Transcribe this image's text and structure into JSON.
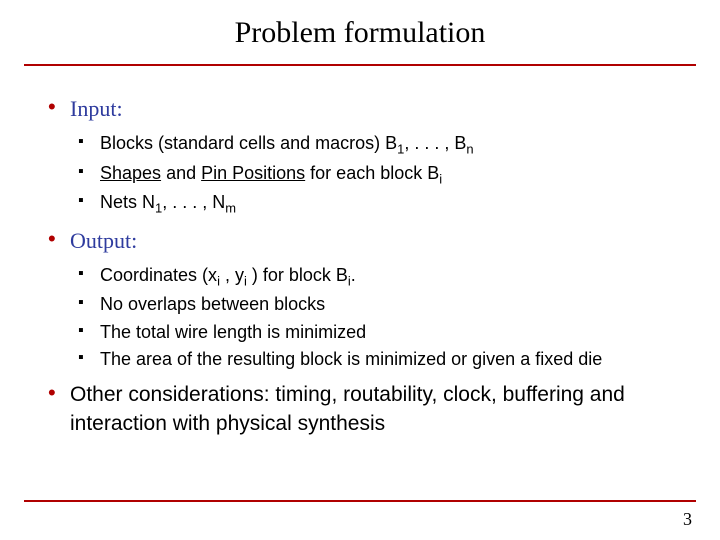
{
  "colors": {
    "accent": "#b00000",
    "heading_blue": "#2e3b9e",
    "text": "#000000",
    "bg": "#ffffff"
  },
  "fonts": {
    "title": "Times New Roman",
    "heading": "Comic Sans MS",
    "body": "Verdana"
  },
  "title": "Problem formulation",
  "page_number": "3",
  "sections": {
    "input": {
      "label": "Input:",
      "items": {
        "blocks_pre": "Blocks (standard cells and macros) B",
        "blocks_sub1": "1",
        "blocks_mid": ", . . . , B",
        "blocks_sub2": "n",
        "shapes_w": "Shapes",
        "shapes_mid": " and ",
        "pin_w": "Pin Positions",
        "shapes_post": " for each block B",
        "shapes_sub": "i",
        "nets_pre": "Nets N",
        "nets_sub1": "1",
        "nets_mid": ", . . . , N",
        "nets_sub2": "m"
      }
    },
    "output": {
      "label": "Output:",
      "items": {
        "coords_a": "Coordinates (x",
        "coords_s1": "i",
        "coords_b": " , y",
        "coords_s2": "i",
        "coords_c": " ) for block B",
        "coords_s3": "i",
        "coords_d": ".",
        "nooverlap": "No overlaps between blocks",
        "wirelen": "The total wire length is minimized",
        "area": "The area of the resulting block is minimized or given a fixed die"
      }
    },
    "other": "Other considerations: timing, routability, clock, buffering and interaction with physical synthesis"
  }
}
